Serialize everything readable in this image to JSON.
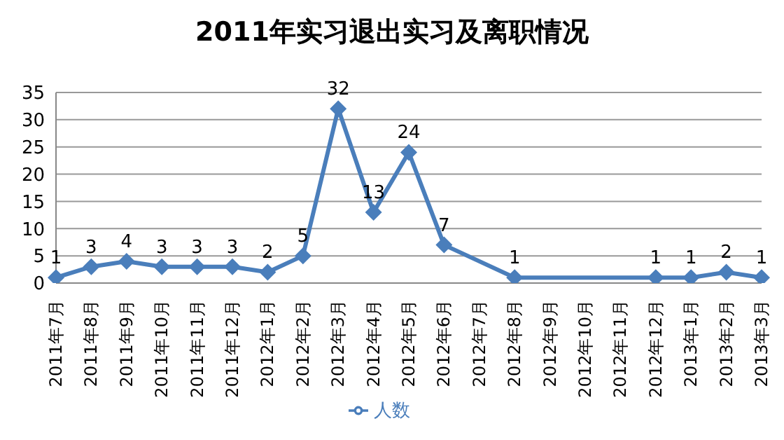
{
  "chart_data": {
    "type": "line",
    "title": "2011年实习退出实习及离职情况",
    "categories": [
      "2011年7月",
      "2011年8月",
      "2011年9月",
      "2011年10月",
      "2011年11月",
      "2011年12月",
      "2012年1月",
      "2012年2月",
      "2012年3月",
      "2012年4月",
      "2012年5月",
      "2012年6月",
      "2012年7月",
      "2012年8月",
      "2012年9月",
      "2012年10月",
      "2012年11月",
      "2012年12月",
      "2013年1月",
      "2013年2月",
      "2013年3月"
    ],
    "series": [
      {
        "name": "人数",
        "color": "#4a7ebb",
        "values": [
          1,
          3,
          4,
          3,
          3,
          3,
          2,
          5,
          32,
          13,
          24,
          7,
          null,
          1,
          null,
          null,
          null,
          1,
          1,
          2,
          1
        ]
      }
    ],
    "ylim": [
      0,
      35
    ],
    "yticks": [
      0,
      5,
      10,
      15,
      20,
      25,
      30,
      35
    ],
    "grid": "y",
    "legend": "bottom",
    "marker": "diamond",
    "data_labels": true
  }
}
